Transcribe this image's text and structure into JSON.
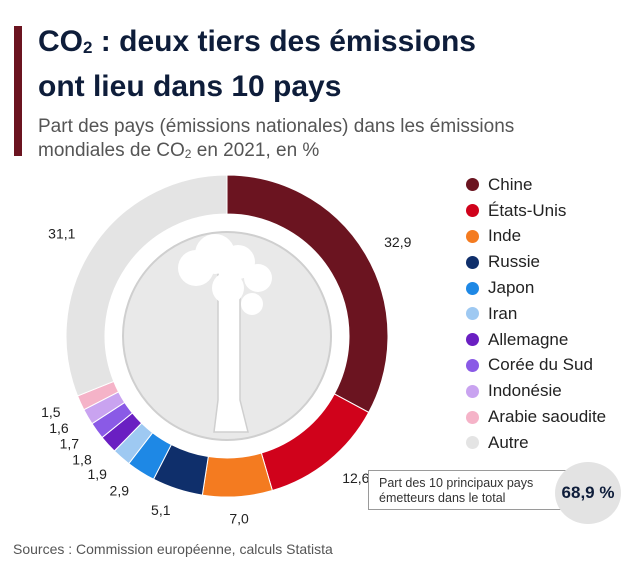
{
  "header": {
    "title_line1_pre": "CO",
    "title_line1_sub": "2",
    "title_line1_post": " : deux tiers des émissions",
    "title_line2": "ont lieu dans 10 pays",
    "subtitle_line1": "Part des pays (émissions nationales) dans les émissions",
    "subtitle_line2_pre": "mondiales de CO",
    "subtitle_line2_sub": "2",
    "subtitle_line2_post": " en 2021, en %"
  },
  "chart_data": {
    "type": "pie",
    "categories": [
      "Chine",
      "États-Unis",
      "Inde",
      "Russie",
      "Japon",
      "Iran",
      "Allemagne",
      "Corée du Sud",
      "Indonésie",
      "Arabie saoudite",
      "Autre"
    ],
    "values": [
      32.9,
      12.6,
      7.0,
      5.1,
      2.9,
      1.9,
      1.8,
      1.7,
      1.6,
      1.5,
      31.1
    ],
    "labels": [
      "32,9",
      "12,6",
      "7,0",
      "5,1",
      "2,9",
      "1,9",
      "1,8",
      "1,7",
      "1,6",
      "1,5",
      "31,1"
    ],
    "colors": [
      "#6b1420",
      "#d0021b",
      "#f47b20",
      "#0f2f6b",
      "#1e88e5",
      "#9ec9f2",
      "#6a1fc2",
      "#8a5ae6",
      "#c9a3f0",
      "#f5b3c8",
      "#e4e4e4"
    ],
    "legend_position": "right"
  },
  "summary": {
    "label_line1": "Part des 10 principaux pays",
    "label_line2": "émetteurs dans le total",
    "value": "68,9 %"
  },
  "source": "Sources : Commission européenne, calculs Statista"
}
